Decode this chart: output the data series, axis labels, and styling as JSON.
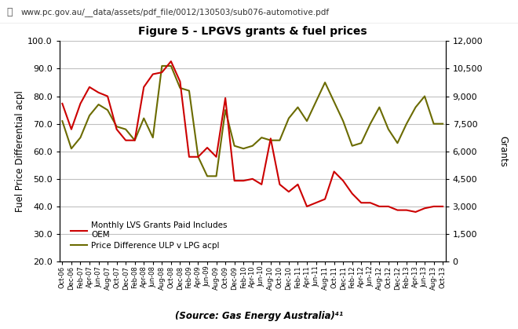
{
  "title": "Figure 5 - LPGVS grants & fuel prices",
  "source_text": "(Source: Gas Energy Australia)⁴¹",
  "url_text": "www.pc.gov.au/__data/assets/pdf_file/0012/130503/sub076-automotive.pdf",
  "ylabel_left": "Fuel Price Differential acpl",
  "ylabel_right": "Grants",
  "ylim_left": [
    20.0,
    100.0
  ],
  "ylim_right": [
    0,
    12000
  ],
  "yticks_left": [
    20.0,
    30.0,
    40.0,
    50.0,
    60.0,
    70.0,
    80.0,
    90.0,
    100.0
  ],
  "yticks_right": [
    0,
    1500,
    3000,
    4500,
    6000,
    7500,
    9000,
    10500,
    12000
  ],
  "background_color": "#ffffff",
  "grid_color": "#c0c0c0",
  "red_color": "#cc0000",
  "olive_color": "#6b6b00",
  "legend_label_red": "Monthly LVS Grants Paid Includes\nOEM",
  "legend_label_olive": "Price Difference ULP v LPG acpl",
  "x_labels": [
    "Oct-06",
    "Dec-06",
    "Feb-07",
    "Apr-07",
    "Jun-07",
    "Aug-07",
    "Oct-07",
    "Dec-07",
    "Feb-08",
    "Apr-08",
    "Jun-08",
    "Aug-08",
    "Oct-08",
    "Dec-08",
    "Feb-09",
    "Apr-09",
    "Jun-09",
    "Aug-09",
    "Oct-09",
    "Dec-09",
    "Feb-10",
    "Apr-10",
    "Jun-10",
    "Aug-10",
    "Oct-10",
    "Dec-10",
    "Feb-11",
    "Apr-11",
    "Jun-11",
    "Aug-11",
    "Oct-11",
    "Dec-11",
    "Feb-12",
    "Apr-12",
    "Jun-12",
    "Aug-12",
    "Oct-12",
    "Dec-12",
    "Feb-13",
    "Apr-13",
    "Jun-13",
    "Aug-13",
    "Oct-13"
  ],
  "price_diff": [
    71,
    61,
    65,
    73,
    77,
    75,
    69,
    68,
    64,
    72,
    65,
    91,
    91,
    83,
    82,
    58,
    51,
    51,
    75,
    62,
    61,
    62,
    65,
    64,
    64,
    72,
    76,
    71,
    78,
    85,
    78,
    71,
    62,
    63,
    70,
    76,
    68,
    63,
    70,
    76,
    80,
    70,
    70
  ],
  "grants_right": [
    8600,
    7200,
    8600,
    9500,
    9200,
    9000,
    7200,
    6600,
    6600,
    9500,
    10200,
    10300,
    10900,
    9800,
    5700,
    5700,
    6200,
    5700,
    8900,
    4400,
    4400,
    4500,
    4200,
    6700,
    4200,
    3800,
    4200,
    3000,
    3200,
    3400,
    4900,
    4400,
    3700,
    3200,
    3200,
    3000,
    3000,
    2800,
    2800,
    2700,
    2900,
    3000,
    3000
  ]
}
